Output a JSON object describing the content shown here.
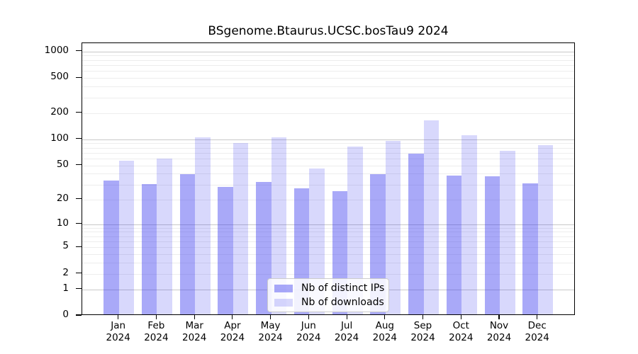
{
  "title": "BSgenome.Btaurus.UCSC.bosTau9 2024",
  "legend": {
    "items": [
      {
        "label": "Nb of distinct IPs",
        "color": "rgba(60,60,240,0.44)"
      },
      {
        "label": "Nb of downloads",
        "color": "rgba(60,60,240,0.20)"
      }
    ]
  },
  "colors": {
    "bar_ips": "rgba(60,60,240,0.44)",
    "bar_downloads": "rgba(60,60,240,0.20)",
    "major_grid": "#c9c9c9",
    "minor_grid": "#ededed",
    "axis": "#000000"
  },
  "chart_data": {
    "type": "bar",
    "scale": "log1p",
    "title": "BSgenome.Btaurus.UCSC.bosTau9 2024",
    "categories": [
      "Jan",
      "Feb",
      "Mar",
      "Apr",
      "May",
      "Jun",
      "Jul",
      "Aug",
      "Sep",
      "Oct",
      "Nov",
      "Dec"
    ],
    "year": "2024",
    "series": [
      {
        "name": "Nb of distinct IPs",
        "color": "rgba(60,60,240,0.44)",
        "values": [
          32,
          29,
          38,
          27,
          31,
          26,
          24,
          38,
          66,
          37,
          36,
          30
        ]
      },
      {
        "name": "Nb of downloads",
        "color": "rgba(60,60,240,0.20)",
        "values": [
          55,
          58,
          101,
          88,
          101,
          44,
          79,
          93,
          160,
          107,
          71,
          82
        ]
      }
    ],
    "yticks": [
      0,
      1,
      2,
      5,
      10,
      20,
      50,
      100,
      200,
      500,
      1000
    ],
    "ylim": [
      0,
      1250
    ],
    "xlabel": "",
    "ylabel": "",
    "grid": "log minor + major horizontal",
    "legend_position": "bottom-center-inside"
  }
}
